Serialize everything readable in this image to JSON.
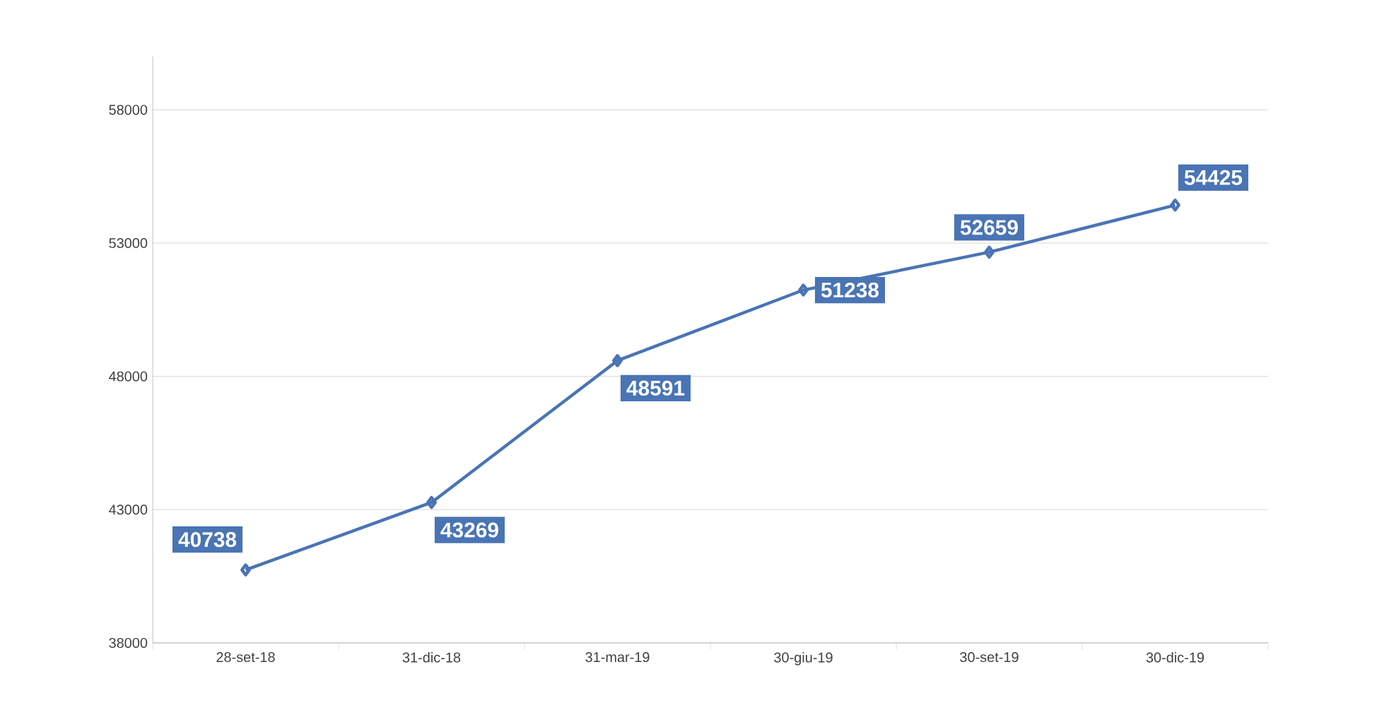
{
  "chart_data": {
    "type": "line",
    "categories": [
      "28-set-18",
      "31-dic-18",
      "31-mar-19",
      "30-giu-19",
      "30-set-19",
      "30-dic-19"
    ],
    "series": [
      {
        "color": "#4a74b4",
        "values": [
          40738,
          43269,
          48591,
          51238,
          52659,
          54425
        ]
      }
    ],
    "ylim": [
      38000,
      60000
    ],
    "yticks": [
      38000,
      43000,
      48000,
      53000,
      58000
    ],
    "grid": "y",
    "marker": "diamond",
    "line_style": "solid",
    "data_labels": true
  }
}
